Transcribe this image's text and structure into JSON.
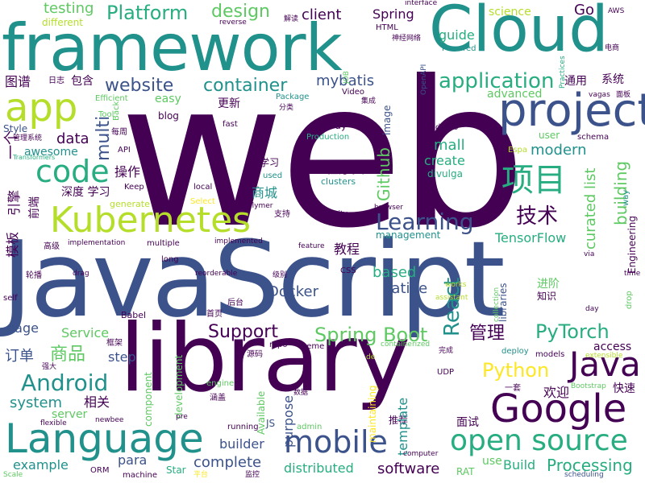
{
  "palette": {
    "dark_purple": "#440154",
    "indigo": "#3b528b",
    "teal": "#21918c",
    "sea_green": "#27ad81",
    "green": "#5ec962",
    "lime": "#b5de2b",
    "yellow": "#fde725"
  },
  "words": {
    "web": "web",
    "javascript": "JavaScript",
    "library": "library",
    "framework": "framework",
    "cloud": "Cloud",
    "app": "app",
    "project": "project",
    "code": "code",
    "kubernetes": "Kubernetes",
    "language": "Language",
    "google": "Google",
    "java": "Java",
    "mobile": "mobile",
    "open_source": "open source",
    "android": "Android",
    "spring_boot": "Spring Boot",
    "react": "React",
    "application": "application",
    "learning": "Learning",
    "website": "website",
    "container": "container",
    "platform": "Platform",
    "design": "design",
    "testing": "testing",
    "client": "client",
    "spring": "Spring",
    "science": "science",
    "go": "Go",
    "guide": "guide",
    "mybatis": "mybatis",
    "xiangmu": "项目",
    "jishu": "技术",
    "github": "Github",
    "mall": "mall",
    "create": "create",
    "modern": "modern",
    "building": "building",
    "curated_list": "curated list",
    "tensorflow": "TensorFlow",
    "multi": "multi",
    "data": "data",
    "pytorch": "PyTorch",
    "python": "Python",
    "support": "Support",
    "service": "Service",
    "page": "page",
    "system": "system",
    "docker": "Docker",
    "native": "native",
    "based": "based",
    "processing": "Processing",
    "complete": "complete",
    "build": "Build",
    "software": "software",
    "distributed": "distributed",
    "example": "example",
    "para": "para",
    "builder": "builder",
    "template": "template",
    "purpose": "purpose",
    "management": "management",
    "access": "access",
    "engineering": "Engineering",
    "advanced": "advanced",
    "easy": "easy",
    "image": "image",
    "libraries": "libraries",
    "step": "step",
    "server": "server",
    "guanli": "管理",
    "shangpin": "商品",
    "dingdan": "订单",
    "xiangguan": "相关",
    "huanying": "欢迎",
    "kuaisu": "快速",
    "jiaocheng": "教程",
    "shangcheng": "商城",
    "chengxuyuan": "程序员",
    "shendu_xuexi": "深度 学习",
    "caozuo": "操作",
    "tongyong": "通用",
    "xitong": "系统",
    "tupu": "图谱",
    "baohan": "包含",
    "gengxin": "更新",
    "yige": "一个",
    "rizhi": "日志",
    "qianduan": "前端",
    "yinqing": "引擎",
    "moban": "模板",
    "jinjie": "进阶",
    "zhishi": "知识",
    "xuexi": "学习",
    "mianshi": "面试",
    "tuijian": "推荐",
    "gaoji": "高级",
    "lunbo": "轮播",
    "shouye": "首页",
    "houtai": "后台",
    "yuanma": "源码",
    "kuangjia": "框架",
    "qiangda": "强大",
    "hangai": "涵盖",
    "wancheng": "完成",
    "yitao": "一套",
    "zhichi": "支持",
    "jibie": "级别",
    "shuju": "数据",
    "pingtai": "平台",
    "jiankong": "监控",
    "shenjing": "神经网络",
    "dianshang": "电商",
    "mianban": "面板",
    "jiedu": "解读",
    "fenlei": "分类",
    "jicheng": "集成",
    "meimei": "每周",
    "guanli_xitong": "管理系统",
    "tool": "Tool",
    "back": "Back",
    "efficient": "Efficient",
    "different": "different",
    "style": "Style",
    "transformers": "Transformers",
    "api": "API",
    "awesome": "awesome",
    "keep": "Keep",
    "generate": "generate",
    "select": "Select",
    "polymer": "Polymer",
    "local": "local",
    "used": "used",
    "clusters": "clusters",
    "divulga": "divulga",
    "espa": "Espa",
    "user": "user",
    "schema": "schema",
    "demo": "demo",
    "v2ray": "v2ray",
    "production": "Production",
    "fast": "fast",
    "blog": "blog",
    "package": "Package",
    "video": "Video",
    "html": "HTML",
    "openapi": "OpenAPI",
    "job": "JOB",
    "powered": "Powered",
    "practices": "Practices",
    "aws": "AWS",
    "interface": "interface",
    "reverse": "reverse",
    "vagas": "vagas",
    "way": "way",
    "via": "via",
    "time": "time",
    "drop": "drop",
    "day": "day",
    "extensible": "extensible",
    "models": "models",
    "deploy": "deploy",
    "bootstrap": "Bootstrap",
    "scheduling": "scheduling",
    "computer": "computer",
    "rat": "RAT",
    "use": "use",
    "udp": "UDP",
    "admin": "admin",
    "maintaining": "maintaining",
    "available": "Available",
    "running": "running",
    "star": "Star",
    "machine": "machine",
    "orm": "ORM",
    "newbee": "newbee",
    "flexible": "flexible",
    "scale": "Scale",
    "pre": "pre",
    "component": "component",
    "engine": "engine",
    "development": "development",
    "babel": "Babel",
    "self": "self",
    "long": "long",
    "implementation": "implementation",
    "multiple": "multiple",
    "implemented": "implemented",
    "feature": "feature",
    "security": "Security",
    "reorderable": "reorderable",
    "drag": "drag",
    "css": "CSS",
    "works": "works",
    "assistant": "assistant",
    "collection": "collection",
    "theme": "theme",
    "repo": "repo",
    "containerized": "containerized",
    "de": "de",
    "js": "JS",
    "browser": "browser"
  }
}
